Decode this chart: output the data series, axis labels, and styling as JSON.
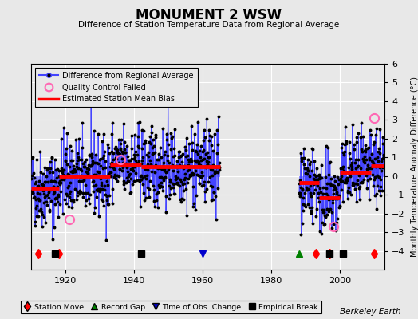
{
  "title": "MONUMENT 2 WSW",
  "subtitle": "Difference of Station Temperature Data from Regional Average",
  "ylabel": "Monthly Temperature Anomaly Difference (°C)",
  "credit": "Berkeley Earth",
  "xlim": [
    1910,
    2013
  ],
  "ylim": [
    -5,
    6
  ],
  "yticks": [
    -4,
    -3,
    -2,
    -1,
    0,
    1,
    2,
    3,
    4,
    5,
    6
  ],
  "xticks": [
    1920,
    1940,
    1960,
    1980,
    2000
  ],
  "seed": 42,
  "segment1_start": 1910.0,
  "segment1_end": 1965.0,
  "segment2_start": 1988.0,
  "segment2_end": 2013.0,
  "bias_segments": [
    {
      "start": 1910,
      "end": 1918,
      "bias": -0.65
    },
    {
      "start": 1918,
      "end": 1933,
      "bias": 0.0
    },
    {
      "start": 1933,
      "end": 1942,
      "bias": 0.6
    },
    {
      "start": 1942,
      "end": 1965,
      "bias": 0.5
    },
    {
      "start": 1988,
      "end": 1994,
      "bias": -0.35
    },
    {
      "start": 1994,
      "end": 2000,
      "bias": -1.15
    },
    {
      "start": 2000,
      "end": 2009,
      "bias": 0.2
    },
    {
      "start": 2009,
      "end": 2013,
      "bias": 0.55
    }
  ],
  "station_moves": [
    1912,
    1918,
    1993,
    1997,
    1997,
    2010
  ],
  "empirical_breaks": [
    1917,
    1942,
    1997,
    2001
  ],
  "record_gap": [
    1988
  ],
  "time_obs_change": [
    1960
  ],
  "qc_failed_pos": [
    [
      1921,
      -2.3
    ],
    [
      1936,
      0.9
    ],
    [
      1998,
      -2.7
    ],
    [
      2010,
      3.1
    ]
  ],
  "noise_std": 1.05,
  "line_color": "#4444ff",
  "line_color_vert": "#8888ff",
  "bias_color": "#ff0000",
  "marker_color": "#000000",
  "qc_color": "#ff69b4",
  "station_move_color": "#ff0000",
  "record_gap_color": "#008000",
  "time_obs_color": "#0000cc",
  "empirical_break_color": "#000000",
  "background_color": "#e8e8e8",
  "plot_bg_color": "#e8e8e8",
  "grid_color": "#ffffff"
}
